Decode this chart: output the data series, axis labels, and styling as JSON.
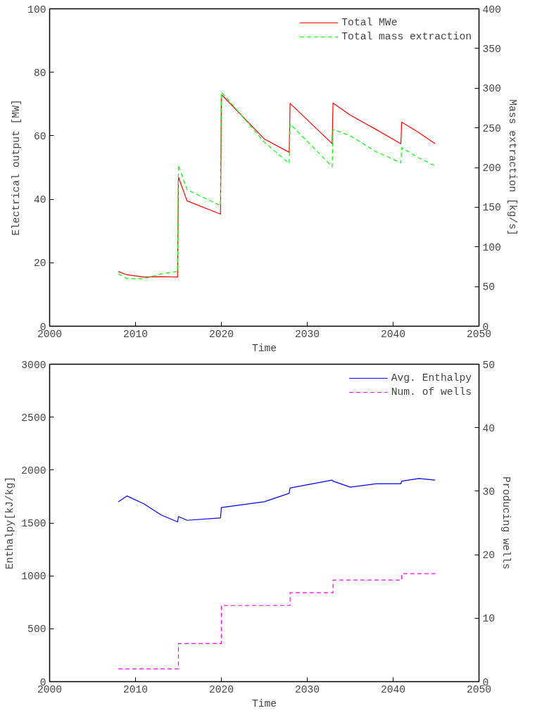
{
  "chart_data": [
    {
      "type": "line",
      "xlabel": "Time",
      "ylabel": "Electrical output [MW]",
      "y2label": "Mass extraction [kg/s]",
      "xlim": [
        2000,
        2050
      ],
      "xticks": [
        2000,
        2010,
        2020,
        2030,
        2040,
        2050
      ],
      "ylim": [
        0,
        100
      ],
      "yticks": [
        0,
        20,
        40,
        60,
        80,
        100
      ],
      "y2lim": [
        0,
        400
      ],
      "y2ticks": [
        0,
        50,
        100,
        150,
        200,
        250,
        300,
        350,
        400
      ],
      "grid": false,
      "legend": "top right",
      "series": [
        {
          "name": "Total MWe",
          "color": "#ff0000",
          "line_style": "solid",
          "x": [
            2008,
            2009,
            2011,
            2013,
            2014.9,
            2015,
            2016,
            2019.9,
            2020,
            2025,
            2027.9,
            2028,
            2032.9,
            2033,
            2035,
            2038,
            2040.9,
            2041,
            2043,
            2044.9
          ],
          "values": [
            17.2,
            16.2,
            15.5,
            15.6,
            15.5,
            47,
            39.5,
            35.3,
            73,
            59,
            54.8,
            70.2,
            57.5,
            70.3,
            66.5,
            62,
            57.5,
            64.3,
            61,
            57.5
          ]
        },
        {
          "name": "Total mass extraction",
          "color": "#00ff00",
          "line_style": "dashed",
          "axis": "y2",
          "x": [
            2008,
            2009,
            2011,
            2013,
            2014.9,
            2015,
            2016,
            2019.9,
            2020,
            2022,
            2025,
            2027.9,
            2028,
            2032.9,
            2033,
            2035,
            2038,
            2040.9,
            2041,
            2043,
            2044.9
          ],
          "values": [
            66,
            60,
            60,
            66,
            69,
            203,
            172,
            152,
            295,
            270,
            232,
            205,
            255,
            201,
            248,
            240,
            220,
            206,
            225,
            212,
            202
          ]
        }
      ]
    },
    {
      "type": "line",
      "xlabel": "Time",
      "ylabel": "Enthalpy[kJ/kg]",
      "y2label": "Producing wells",
      "xlim": [
        2000,
        2050
      ],
      "xticks": [
        2000,
        2010,
        2020,
        2030,
        2040,
        2050
      ],
      "ylim": [
        0,
        3000
      ],
      "yticks": [
        0,
        500,
        1000,
        1500,
        2000,
        2500,
        3000
      ],
      "y2lim": [
        0,
        50
      ],
      "y2ticks": [
        0,
        10,
        20,
        30,
        40,
        50
      ],
      "grid": false,
      "legend": "top right",
      "series": [
        {
          "name": "Avg. Enthalpy",
          "color": "#0000ff",
          "line_style": "solid",
          "x": [
            2008,
            2009,
            2011,
            2013,
            2014.9,
            2015,
            2016,
            2019.9,
            2020,
            2025,
            2027.9,
            2028,
            2032.9,
            2033,
            2035,
            2038,
            2040.9,
            2041,
            2043,
            2044.9
          ],
          "values": [
            1700,
            1755,
            1680,
            1575,
            1510,
            1560,
            1525,
            1548,
            1645,
            1700,
            1780,
            1830,
            1905,
            1895,
            1838,
            1870,
            1870,
            1895,
            1920,
            1905
          ]
        },
        {
          "name": "Num. of wells",
          "type": "step",
          "color": "#ff00ff",
          "line_style": "dashed",
          "axis": "y2",
          "x": [
            2008,
            2015,
            2020,
            2028,
            2033,
            2041,
            2045
          ],
          "values": [
            2,
            6,
            12,
            14,
            16,
            17,
            17
          ]
        }
      ]
    }
  ]
}
